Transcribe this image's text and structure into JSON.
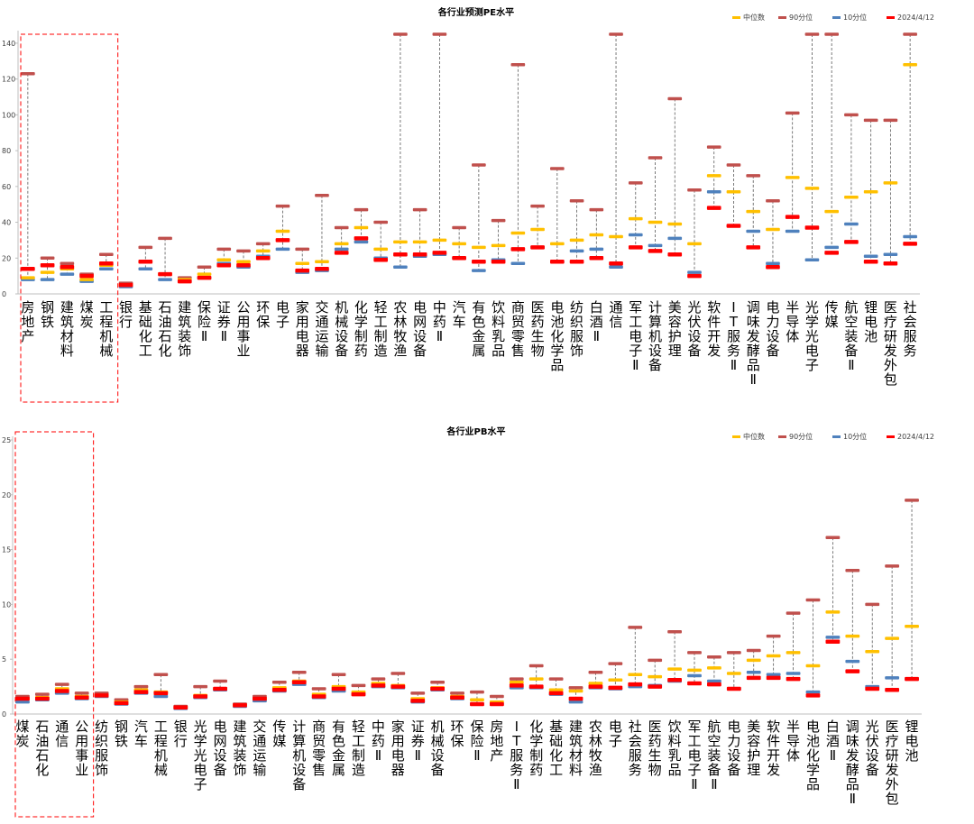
{
  "colors": {
    "median": "#ffc000",
    "p90": "#c0504d",
    "p10": "#4f81bd",
    "current": "#ff0000",
    "whisker": "#595959",
    "highlight": "#ff0000",
    "axis": "#bfbfbf",
    "text": "#000000"
  },
  "chart_data": [
    {
      "type": "range",
      "title": "各行业预测PE水平",
      "legend": [
        "中位数",
        "90分位",
        "10分位",
        "2024/4/12"
      ],
      "legend_position": "top-right",
      "ylim": [
        0,
        145
      ],
      "yticks": [
        0,
        20,
        40,
        60,
        80,
        100,
        120,
        140
      ],
      "categories": [
        "房地产",
        "钢铁",
        "建筑材料",
        "煤炭",
        "工程机械",
        "银行",
        "基础化工",
        "石油石化",
        "建筑装饰",
        "保险Ⅱ",
        "证券Ⅱ",
        "公用事业",
        "环保",
        "电子",
        "家用电器",
        "交通运输",
        "机械设备",
        "化学制药",
        "轻工制造",
        "农林牧渔",
        "电网设备",
        "中药Ⅱ",
        "汽车",
        "有色金属",
        "饮料乳品",
        "商贸零售",
        "医药生物",
        "电池化学品",
        "纺织服饰",
        "白酒Ⅱ",
        "通信",
        "军工电子Ⅱ",
        "计算机设备",
        "美容护理",
        "光伏设备",
        "软件开发",
        "IT服务Ⅱ",
        "调味发酵品Ⅱ",
        "电力设备",
        "半导体",
        "光学光电子",
        "传媒",
        "航空装备Ⅱ",
        "锂电池",
        "医疗研发外包",
        "社会服务"
      ],
      "highlight_count": 5,
      "series": [
        {
          "name": "中位数",
          "values": [
            9,
            12,
            14,
            8,
            16,
            5,
            18,
            11,
            8,
            11,
            19,
            18,
            24,
            35,
            17,
            18,
            28,
            37,
            25,
            29,
            29,
            30,
            28,
            26,
            27,
            34,
            36,
            28,
            30,
            33,
            32,
            42,
            40,
            39,
            28,
            66,
            57,
            46,
            36,
            65,
            59,
            46,
            54,
            57,
            62,
            128
          ]
        },
        {
          "name": "90分位",
          "values": [
            123,
            20,
            17,
            11,
            22,
            6,
            26,
            31,
            9,
            15,
            25,
            24,
            28,
            49,
            25,
            55,
            37,
            47,
            40,
            147,
            47,
            147,
            37,
            72,
            41,
            128,
            49,
            70,
            52,
            47,
            147,
            62,
            76,
            109,
            58,
            82,
            72,
            66,
            52,
            101,
            147,
            147,
            100,
            97,
            97,
            147
          ]
        },
        {
          "name": "10分位",
          "values": [
            8,
            8,
            11,
            7,
            14,
            4,
            14,
            8,
            7,
            9,
            17,
            15,
            21,
            25,
            12,
            13,
            25,
            29,
            20,
            15,
            21,
            22,
            20,
            13,
            19,
            17,
            26,
            18,
            24,
            25,
            15,
            33,
            27,
            31,
            12,
            57,
            38,
            35,
            17,
            35,
            19,
            26,
            39,
            21,
            22,
            32
          ]
        },
        {
          "name": "2024/4/12",
          "values": [
            14,
            16,
            15,
            10,
            17,
            5,
            18,
            11,
            7,
            9,
            16,
            16,
            20,
            30,
            13,
            14,
            23,
            31,
            19,
            22,
            22,
            23,
            20,
            18,
            18,
            25,
            26,
            18,
            18,
            20,
            17,
            26,
            24,
            22,
            10,
            48,
            38,
            26,
            15,
            43,
            37,
            23,
            29,
            18,
            17,
            28
          ]
        }
      ]
    },
    {
      "type": "range",
      "title": "各行业PB水平",
      "legend": [
        "中位数",
        "90分位",
        "10分位",
        "2024/4/12"
      ],
      "legend_position": "top-right",
      "ylim": [
        0,
        25
      ],
      "yticks": [
        0,
        5,
        10,
        15,
        20,
        25
      ],
      "categories": [
        "煤炭",
        "石油石化",
        "通信",
        "公用事业",
        "纺织服饰",
        "钢铁",
        "汽车",
        "工程机械",
        "银行",
        "光学光电子",
        "电网设备",
        "建筑装饰",
        "交通运输",
        "传媒",
        "计算机设备",
        "商贸零售",
        "有色金属",
        "轻工制造",
        "中药Ⅱ",
        "家用电器",
        "证券Ⅱ",
        "机械设备",
        "环保",
        "保险Ⅱ",
        "房地产",
        "IT服务Ⅱ",
        "化学制药",
        "基础化工",
        "建筑材料",
        "农林牧渔",
        "电子",
        "社会服务",
        "医药生物",
        "饮料乳品",
        "军工电子Ⅱ",
        "航空装备Ⅱ",
        "电力设备",
        "美容护理",
        "软件开发",
        "半导体",
        "电池化学品",
        "白酒Ⅱ",
        "调味发酵品Ⅱ",
        "光伏设备",
        "医疗研发外包",
        "锂电池"
      ],
      "highlight_count": 4,
      "series": [
        {
          "name": "中位数",
          "values": [
            1.4,
            1.5,
            2.3,
            1.6,
            1.7,
            1.1,
            2.2,
            2.0,
            0.6,
            1.7,
            2.3,
            0.8,
            1.4,
            2.4,
            3.0,
            1.8,
            2.5,
            2.0,
            2.8,
            2.6,
            1.4,
            2.4,
            1.6,
            1.3,
            1.1,
            2.9,
            3.2,
            2.2,
            2.1,
            2.8,
            3.1,
            3.6,
            3.4,
            4.1,
            4.0,
            4.2,
            3.7,
            4.9,
            5.3,
            5.6,
            4.4,
            9.3,
            7.1,
            5.7,
            6.9,
            8.0
          ]
        },
        {
          "name": "90分位",
          "values": [
            1.6,
            1.8,
            2.7,
            1.9,
            1.9,
            1.3,
            2.5,
            3.6,
            0.7,
            2.5,
            3.0,
            0.9,
            1.6,
            2.9,
            3.8,
            2.3,
            3.6,
            2.6,
            3.2,
            3.7,
            1.9,
            2.9,
            1.9,
            2.0,
            1.6,
            3.2,
            4.4,
            3.2,
            2.4,
            3.8,
            4.6,
            7.9,
            4.9,
            7.5,
            5.6,
            5.2,
            5.6,
            5.8,
            7.1,
            9.2,
            10.4,
            16.1,
            13.1,
            10.0,
            13.5,
            19.5
          ]
        },
        {
          "name": "10分位",
          "values": [
            1.1,
            1.3,
            1.9,
            1.4,
            1.6,
            0.9,
            1.9,
            1.6,
            0.5,
            1.5,
            2.2,
            0.7,
            1.2,
            2.1,
            2.7,
            1.5,
            2.1,
            1.8,
            2.5,
            2.4,
            1.1,
            2.2,
            1.4,
            0.9,
            0.9,
            2.4,
            2.4,
            1.8,
            1.1,
            2.4,
            2.3,
            2.5,
            2.6,
            3.0,
            3.5,
            3.0,
            2.3,
            3.8,
            3.6,
            3.7,
            2.0,
            7.0,
            4.8,
            2.5,
            3.3,
            3.2
          ]
        },
        {
          "name": "2024/4/12",
          "values": [
            1.4,
            1.4,
            2.1,
            1.5,
            1.7,
            1.0,
            2.0,
            1.9,
            0.6,
            1.6,
            2.3,
            0.8,
            1.4,
            2.2,
            2.9,
            1.6,
            2.3,
            1.8,
            2.6,
            2.5,
            1.2,
            2.3,
            1.5,
            0.9,
            0.9,
            2.6,
            2.5,
            1.9,
            1.4,
            2.5,
            2.4,
            2.7,
            2.5,
            3.1,
            2.8,
            2.7,
            2.3,
            3.3,
            3.3,
            3.2,
            1.7,
            6.6,
            3.9,
            2.3,
            2.2,
            3.2
          ]
        }
      ]
    }
  ]
}
